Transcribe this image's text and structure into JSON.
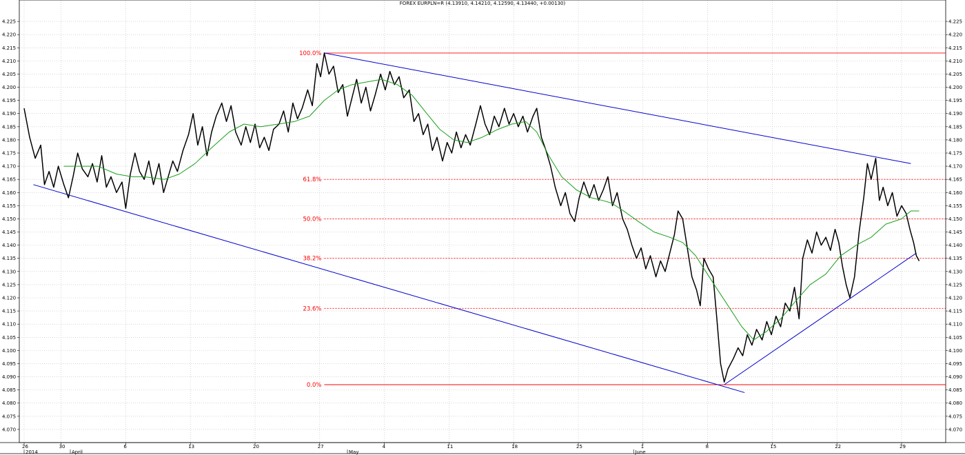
{
  "chart_data": {
    "type": "line",
    "title": "FOREX EURPLN=R (4.13910, 4.14210, 4.12590, 4.13440, +0.00130)",
    "ylim": [
      4.065,
      4.23
    ],
    "y_ticks": [
      4.07,
      4.075,
      4.08,
      4.085,
      4.09,
      4.095,
      4.1,
      4.105,
      4.11,
      4.115,
      4.12,
      4.125,
      4.13,
      4.135,
      4.14,
      4.145,
      4.15,
      4.155,
      4.16,
      4.165,
      4.17,
      4.175,
      4.18,
      4.185,
      4.19,
      4.195,
      4.2,
      4.205,
      4.21,
      4.215,
      4.22,
      4.225
    ],
    "x_axis": {
      "day_ticks": [
        {
          "label": "26",
          "day": 0
        },
        {
          "label": "30",
          "day": 4
        },
        {
          "label": "6",
          "day": 11
        },
        {
          "label": "13",
          "day": 18
        },
        {
          "label": "20",
          "day": 25
        },
        {
          "label": "27",
          "day": 32
        },
        {
          "label": "4",
          "day": 39
        },
        {
          "label": "11",
          "day": 46
        },
        {
          "label": "18",
          "day": 53
        },
        {
          "label": "25",
          "day": 60
        },
        {
          "label": "1",
          "day": 67
        },
        {
          "label": "8",
          "day": 74
        },
        {
          "label": "15",
          "day": 81
        },
        {
          "label": "22",
          "day": 88
        },
        {
          "label": "29",
          "day": 95
        }
      ],
      "period_labels": [
        {
          "label": "2014",
          "day": 0
        },
        {
          "label": "April",
          "day": 5
        },
        {
          "label": "May",
          "day": 35
        },
        {
          "label": "June",
          "day": 66
        }
      ],
      "xlim": [
        0,
        97
      ]
    },
    "series": [
      {
        "key": "price",
        "color": "#000000",
        "points": [
          [
            0,
            4.192
          ],
          [
            0.6,
            4.181
          ],
          [
            1.2,
            4.173
          ],
          [
            1.8,
            4.178
          ],
          [
            2.2,
            4.163
          ],
          [
            2.7,
            4.168
          ],
          [
            3.2,
            4.162
          ],
          [
            3.7,
            4.17
          ],
          [
            4.3,
            4.163
          ],
          [
            4.8,
            4.158
          ],
          [
            5.3,
            4.166
          ],
          [
            5.8,
            4.175
          ],
          [
            6.3,
            4.169
          ],
          [
            6.9,
            4.166
          ],
          [
            7.4,
            4.171
          ],
          [
            7.9,
            4.164
          ],
          [
            8.4,
            4.174
          ],
          [
            8.9,
            4.162
          ],
          [
            9.4,
            4.166
          ],
          [
            10.0,
            4.16
          ],
          [
            10.6,
            4.164
          ],
          [
            11.0,
            4.154
          ],
          [
            11.5,
            4.167
          ],
          [
            12.0,
            4.175
          ],
          [
            12.5,
            4.168
          ],
          [
            13.0,
            4.165
          ],
          [
            13.5,
            4.172
          ],
          [
            14.0,
            4.163
          ],
          [
            14.6,
            4.171
          ],
          [
            15.1,
            4.16
          ],
          [
            15.6,
            4.166
          ],
          [
            16.1,
            4.172
          ],
          [
            16.6,
            4.168
          ],
          [
            17.2,
            4.176
          ],
          [
            17.8,
            4.182
          ],
          [
            18.3,
            4.19
          ],
          [
            18.8,
            4.178
          ],
          [
            19.3,
            4.185
          ],
          [
            19.8,
            4.174
          ],
          [
            20.3,
            4.183
          ],
          [
            20.8,
            4.189
          ],
          [
            21.4,
            4.194
          ],
          [
            21.9,
            4.187
          ],
          [
            22.4,
            4.193
          ],
          [
            22.9,
            4.183
          ],
          [
            23.5,
            4.178
          ],
          [
            24.0,
            4.185
          ],
          [
            24.5,
            4.179
          ],
          [
            25.0,
            4.186
          ],
          [
            25.5,
            4.177
          ],
          [
            26.0,
            4.181
          ],
          [
            26.5,
            4.176
          ],
          [
            27.0,
            4.184
          ],
          [
            27.6,
            4.186
          ],
          [
            28.1,
            4.191
          ],
          [
            28.6,
            4.183
          ],
          [
            29.1,
            4.194
          ],
          [
            29.6,
            4.188
          ],
          [
            30.1,
            4.192
          ],
          [
            30.7,
            4.199
          ],
          [
            31.2,
            4.193
          ],
          [
            31.7,
            4.209
          ],
          [
            32.1,
            4.204
          ],
          [
            32.5,
            4.213
          ],
          [
            33.0,
            4.205
          ],
          [
            33.5,
            4.208
          ],
          [
            34.0,
            4.198
          ],
          [
            34.5,
            4.201
          ],
          [
            35.0,
            4.189
          ],
          [
            35.5,
            4.196
          ],
          [
            36.0,
            4.203
          ],
          [
            36.5,
            4.194
          ],
          [
            37.0,
            4.2
          ],
          [
            37.5,
            4.191
          ],
          [
            38.0,
            4.197
          ],
          [
            38.6,
            4.205
          ],
          [
            39.1,
            4.199
          ],
          [
            39.6,
            4.206
          ],
          [
            40.1,
            4.201
          ],
          [
            40.6,
            4.204
          ],
          [
            41.1,
            4.196
          ],
          [
            41.7,
            4.199
          ],
          [
            42.2,
            4.187
          ],
          [
            42.7,
            4.19
          ],
          [
            43.2,
            4.182
          ],
          [
            43.7,
            4.186
          ],
          [
            44.2,
            4.176
          ],
          [
            44.7,
            4.181
          ],
          [
            45.3,
            4.172
          ],
          [
            45.8,
            4.179
          ],
          [
            46.3,
            4.175
          ],
          [
            46.8,
            4.183
          ],
          [
            47.3,
            4.177
          ],
          [
            47.8,
            4.182
          ],
          [
            48.3,
            4.178
          ],
          [
            48.9,
            4.186
          ],
          [
            49.4,
            4.193
          ],
          [
            49.9,
            4.186
          ],
          [
            50.4,
            4.182
          ],
          [
            50.9,
            4.189
          ],
          [
            51.4,
            4.185
          ],
          [
            52.0,
            4.192
          ],
          [
            52.5,
            4.186
          ],
          [
            53.0,
            4.19
          ],
          [
            53.5,
            4.185
          ],
          [
            54.0,
            4.189
          ],
          [
            54.5,
            4.183
          ],
          [
            55.1,
            4.189
          ],
          [
            55.5,
            4.192
          ],
          [
            56.0,
            4.181
          ],
          [
            56.5,
            4.176
          ],
          [
            57.0,
            4.17
          ],
          [
            57.5,
            4.162
          ],
          [
            58.1,
            4.155
          ],
          [
            58.6,
            4.16
          ],
          [
            59.1,
            4.152
          ],
          [
            59.6,
            4.149
          ],
          [
            60.1,
            4.158
          ],
          [
            60.6,
            4.164
          ],
          [
            61.2,
            4.158
          ],
          [
            61.7,
            4.163
          ],
          [
            62.2,
            4.157
          ],
          [
            62.7,
            4.161
          ],
          [
            63.2,
            4.166
          ],
          [
            63.7,
            4.155
          ],
          [
            64.2,
            4.16
          ],
          [
            64.8,
            4.15
          ],
          [
            65.3,
            4.146
          ],
          [
            65.8,
            4.14
          ],
          [
            66.3,
            4.135
          ],
          [
            66.8,
            4.139
          ],
          [
            67.3,
            4.131
          ],
          [
            67.8,
            4.136
          ],
          [
            68.4,
            4.128
          ],
          [
            68.9,
            4.134
          ],
          [
            69.4,
            4.13
          ],
          [
            69.9,
            4.137
          ],
          [
            70.4,
            4.144
          ],
          [
            70.8,
            4.153
          ],
          [
            71.3,
            4.15
          ],
          [
            71.8,
            4.139
          ],
          [
            72.3,
            4.128
          ],
          [
            72.8,
            4.123
          ],
          [
            73.2,
            4.117
          ],
          [
            73.6,
            4.135
          ],
          [
            74.1,
            4.131
          ],
          [
            74.6,
            4.128
          ],
          [
            75.0,
            4.112
          ],
          [
            75.4,
            4.095
          ],
          [
            75.8,
            4.088
          ],
          [
            76.2,
            4.093
          ],
          [
            76.8,
            4.097
          ],
          [
            77.3,
            4.101
          ],
          [
            77.8,
            4.098
          ],
          [
            78.3,
            4.106
          ],
          [
            78.8,
            4.102
          ],
          [
            79.3,
            4.108
          ],
          [
            79.9,
            4.104
          ],
          [
            80.4,
            4.111
          ],
          [
            80.9,
            4.106
          ],
          [
            81.4,
            4.113
          ],
          [
            81.9,
            4.109
          ],
          [
            82.4,
            4.118
          ],
          [
            82.9,
            4.115
          ],
          [
            83.4,
            4.124
          ],
          [
            83.9,
            4.112
          ],
          [
            84.3,
            4.135
          ],
          [
            84.8,
            4.142
          ],
          [
            85.3,
            4.137
          ],
          [
            85.8,
            4.145
          ],
          [
            86.3,
            4.14
          ],
          [
            86.8,
            4.143
          ],
          [
            87.3,
            4.138
          ],
          [
            87.8,
            4.146
          ],
          [
            88.2,
            4.141
          ],
          [
            88.6,
            4.132
          ],
          [
            89.0,
            4.125
          ],
          [
            89.4,
            4.12
          ],
          [
            89.9,
            4.128
          ],
          [
            90.4,
            4.145
          ],
          [
            90.9,
            4.158
          ],
          [
            91.3,
            4.171
          ],
          [
            91.7,
            4.165
          ],
          [
            92.2,
            4.173
          ],
          [
            92.6,
            4.157
          ],
          [
            93.0,
            4.162
          ],
          [
            93.5,
            4.155
          ],
          [
            94.0,
            4.16
          ],
          [
            94.5,
            4.151
          ],
          [
            95.0,
            4.155
          ],
          [
            95.5,
            4.152
          ],
          [
            95.9,
            4.146
          ],
          [
            96.3,
            4.141
          ],
          [
            96.6,
            4.136
          ],
          [
            96.9,
            4.134
          ]
        ]
      },
      {
        "key": "moving_average",
        "color": "#1a9e1a",
        "points": [
          [
            4.3,
            4.17
          ],
          [
            6.0,
            4.17
          ],
          [
            8.0,
            4.17
          ],
          [
            10.0,
            4.167
          ],
          [
            11.7,
            4.166
          ],
          [
            13.0,
            4.166
          ],
          [
            15.2,
            4.165
          ],
          [
            16.8,
            4.167
          ],
          [
            18.5,
            4.171
          ],
          [
            20.3,
            4.177
          ],
          [
            22.2,
            4.183
          ],
          [
            23.8,
            4.186
          ],
          [
            25.6,
            4.185
          ],
          [
            27.5,
            4.186
          ],
          [
            29.3,
            4.187
          ],
          [
            30.9,
            4.189
          ],
          [
            32.5,
            4.195
          ],
          [
            34.0,
            4.199
          ],
          [
            35.5,
            4.201
          ],
          [
            37.1,
            4.202
          ],
          [
            38.7,
            4.203
          ],
          [
            40.4,
            4.201
          ],
          [
            42.0,
            4.197
          ],
          [
            43.6,
            4.19
          ],
          [
            45.0,
            4.184
          ],
          [
            46.5,
            4.18
          ],
          [
            48.0,
            4.179
          ],
          [
            49.6,
            4.181
          ],
          [
            51.3,
            4.184
          ],
          [
            52.8,
            4.186
          ],
          [
            54.3,
            4.187
          ],
          [
            55.5,
            4.183
          ],
          [
            56.8,
            4.174
          ],
          [
            58.2,
            4.166
          ],
          [
            59.8,
            4.161
          ],
          [
            61.4,
            4.158
          ],
          [
            62.6,
            4.157
          ],
          [
            63.6,
            4.156
          ],
          [
            64.9,
            4.153
          ],
          [
            66.5,
            4.149
          ],
          [
            68.2,
            4.145
          ],
          [
            69.9,
            4.143
          ],
          [
            71.3,
            4.141
          ],
          [
            72.7,
            4.136
          ],
          [
            73.8,
            4.13
          ],
          [
            74.9,
            4.124
          ],
          [
            76.4,
            4.116
          ],
          [
            77.7,
            4.109
          ],
          [
            79.0,
            4.104
          ],
          [
            80.3,
            4.107
          ],
          [
            81.9,
            4.112
          ],
          [
            83.6,
            4.119
          ],
          [
            85.1,
            4.125
          ],
          [
            86.8,
            4.129
          ],
          [
            88.4,
            4.136
          ],
          [
            90.1,
            4.14
          ],
          [
            91.7,
            4.143
          ],
          [
            93.3,
            4.148
          ],
          [
            95.0,
            4.15
          ],
          [
            96.0,
            4.153
          ],
          [
            96.9,
            4.153
          ]
        ]
      }
    ],
    "trendlines": [
      {
        "color": "#0000cc",
        "from": [
          32.5,
          4.213
        ],
        "to": [
          96.0,
          4.171
        ]
      },
      {
        "color": "#0000cc",
        "from": [
          1.0,
          4.163
        ],
        "to": [
          78.0,
          4.084
        ]
      },
      {
        "color": "#0000cc",
        "from": [
          75.8,
          4.087
        ],
        "to": [
          96.6,
          4.137
        ]
      }
    ],
    "fibonacci": {
      "color": "#ff0000",
      "levels": [
        {
          "label": "100.0%",
          "value": 4.213
        },
        {
          "label": "61.8%",
          "value": 4.165
        },
        {
          "label": "50.0%",
          "value": 4.15
        },
        {
          "label": "38.2%",
          "value": 4.135
        },
        {
          "label": "23.6%",
          "value": 4.116
        },
        {
          "label": "0.0%",
          "value": 4.087
        }
      ]
    },
    "grid": true,
    "legend": "none"
  }
}
